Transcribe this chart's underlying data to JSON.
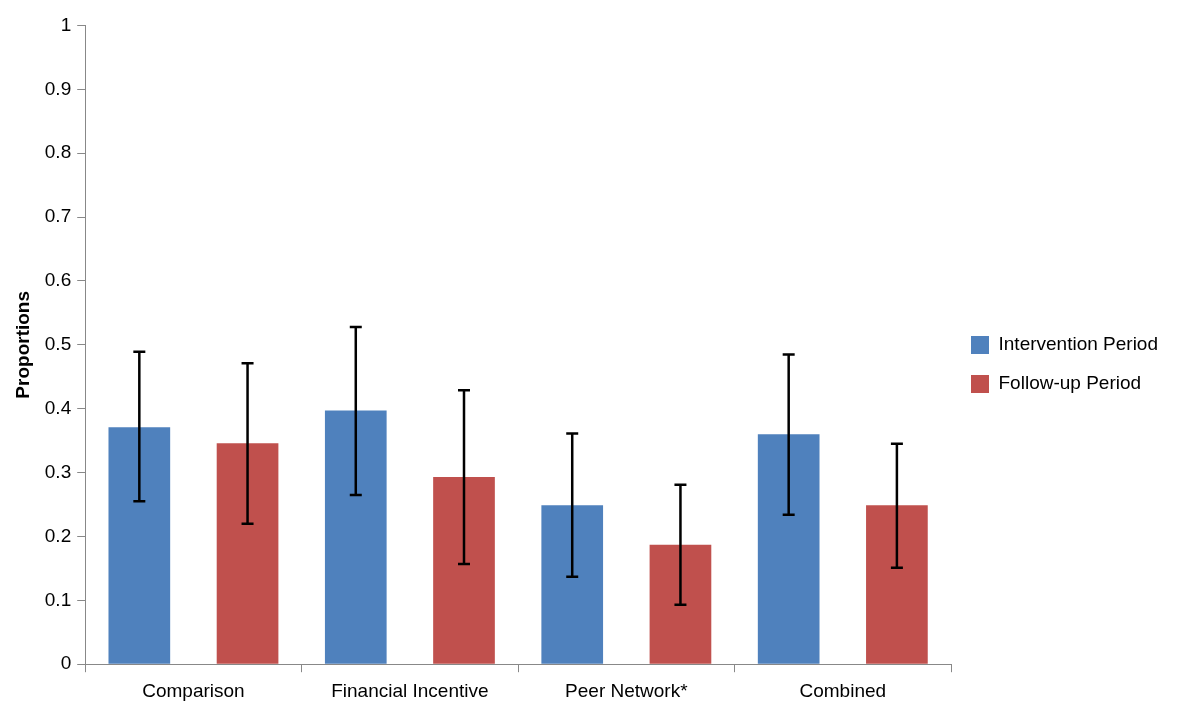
{
  "chart_data": {
    "type": "bar",
    "ylabel": "Proportions",
    "categories": [
      "Comparison",
      "Financial Incentive",
      "Peer Network*",
      "Combined"
    ],
    "series": [
      {
        "name": "Intervention Period",
        "color": "#4f81bd",
        "values": [
          0.371,
          0.397,
          0.249,
          0.36
        ],
        "errors": [
          [
            0.255,
            0.489
          ],
          [
            0.265,
            0.528
          ],
          [
            0.137,
            0.361
          ],
          [
            0.234,
            0.485
          ]
        ]
      },
      {
        "name": "Follow-up Period",
        "color": "#c0504d",
        "values": [
          0.346,
          0.293,
          0.187,
          0.249
        ],
        "errors": [
          [
            0.22,
            0.471
          ],
          [
            0.157,
            0.429
          ],
          [
            0.093,
            0.281
          ],
          [
            0.151,
            0.345
          ]
        ]
      }
    ],
    "ylim": [
      0,
      1
    ],
    "yticks": [
      0,
      0.1,
      0.2,
      0.3,
      0.4,
      0.5,
      0.6,
      0.7,
      0.8,
      0.9,
      1
    ],
    "grid": false,
    "legend": "right"
  }
}
